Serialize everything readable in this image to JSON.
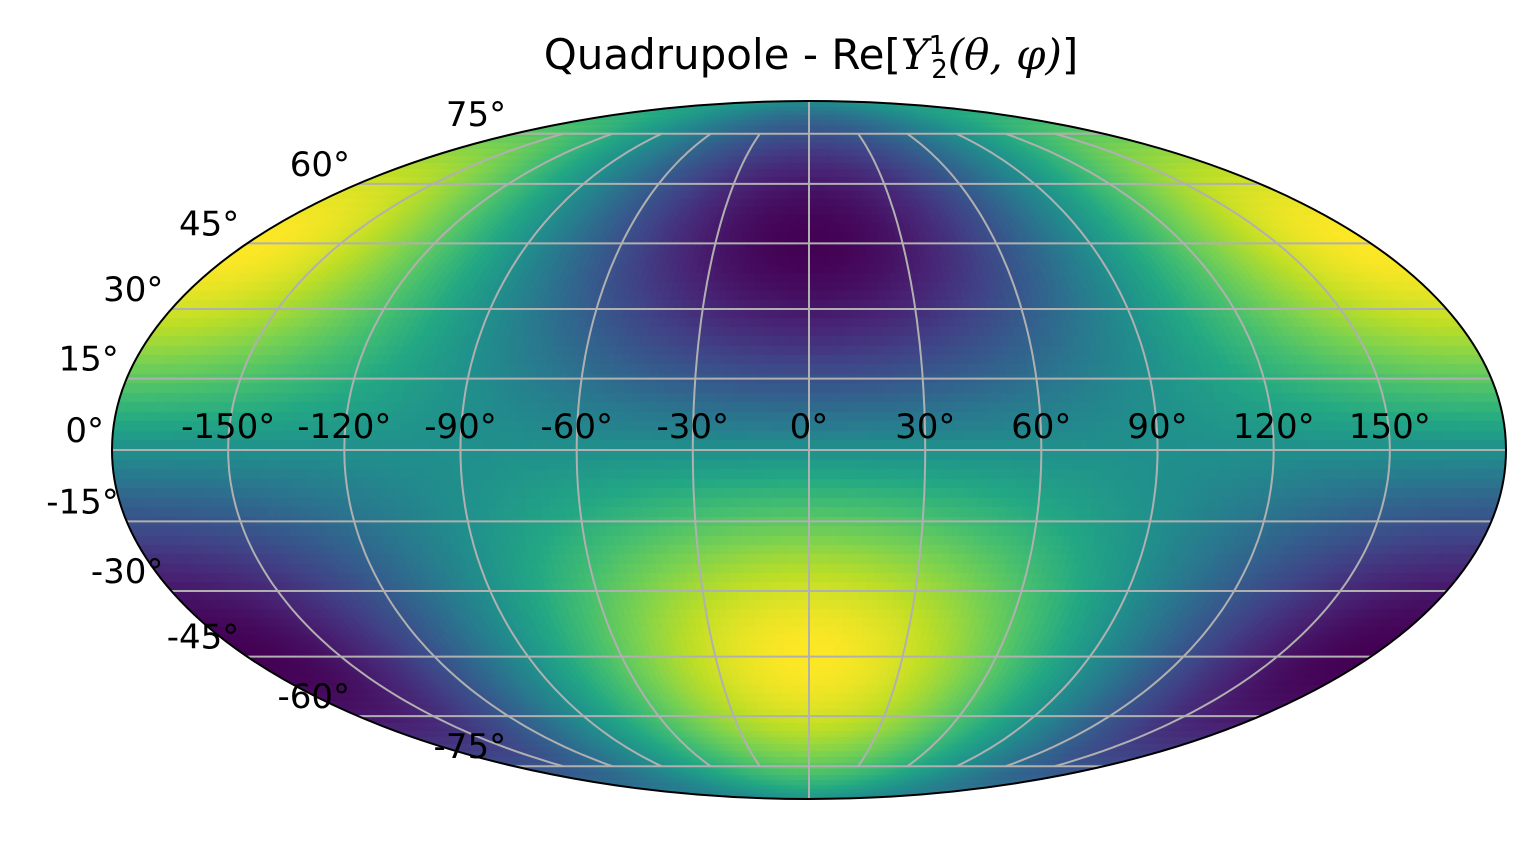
{
  "chart_data": {
    "type": "heatmap",
    "projection": "mollweide",
    "title": "Quadrupole - Re[Y_2^1(θ, φ)]",
    "title_parts": {
      "prefix": "Quadrupole - Re[",
      "symbol": "Y",
      "superscript": "1",
      "subscript": "2",
      "args": "(θ, φ)",
      "suffix": "]"
    },
    "colormap": "viridis",
    "field": "-sin(latitude) * cos(latitude) * cos(longitude)",
    "lon_range": [
      -180,
      180
    ],
    "lat_range": [
      -90,
      90
    ],
    "grid": true,
    "grid_color": "#b0b0b0",
    "xticks": [
      -150,
      -120,
      -90,
      -60,
      -30,
      0,
      30,
      60,
      90,
      120,
      150
    ],
    "xtick_labels": [
      "-150°",
      "-120°",
      "-90°",
      "-60°",
      "-30°",
      "0°",
      "30°",
      "60°",
      "90°",
      "120°",
      "150°"
    ],
    "yticks": [
      75,
      60,
      45,
      30,
      15,
      0,
      -15,
      -30,
      -45,
      -60,
      -75
    ],
    "ytick_labels": [
      "75°",
      "60°",
      "45°",
      "30°",
      "15°",
      "0°",
      "-15°",
      "-30°",
      "-45°",
      "-60°",
      "-75°"
    ]
  }
}
